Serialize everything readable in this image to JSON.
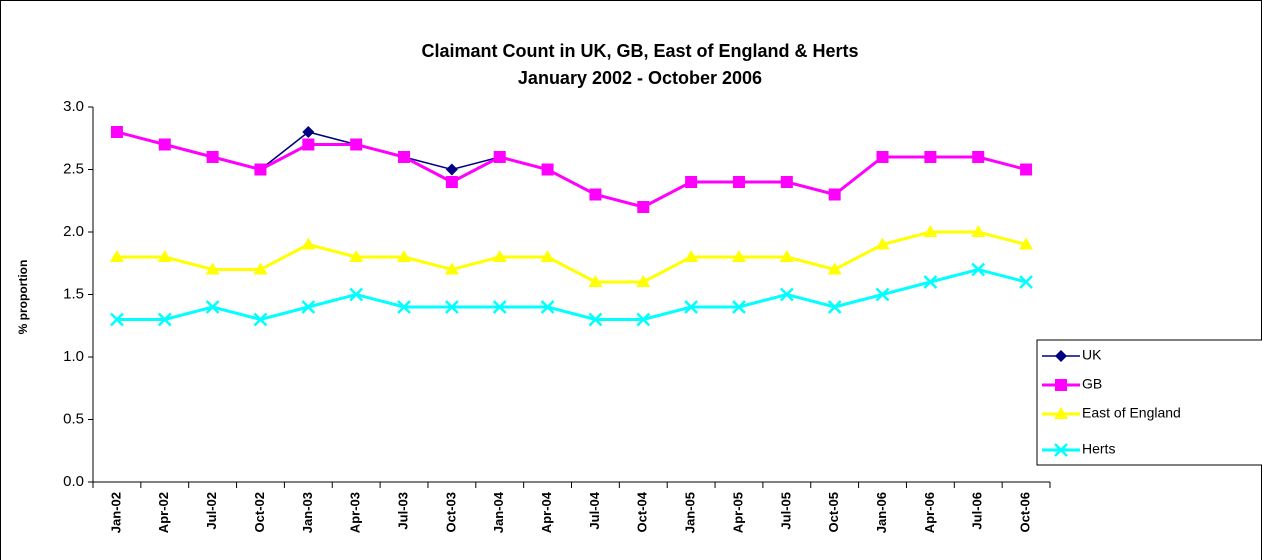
{
  "chart_data": {
    "type": "line",
    "title": "Claimant Count in UK, GB, East of England & Herts",
    "subtitle": "January 2002 - October 2006",
    "y_label": "% proportion",
    "categories": [
      "Jan-02",
      "Apr-02",
      "Jul-02",
      "Oct-02",
      "Jan-03",
      "Apr-03",
      "Jul-03",
      "Oct-03",
      "Jan-04",
      "Apr-04",
      "Jul-04",
      "Oct-04",
      "Jan-05",
      "Apr-05",
      "Jul-05",
      "Oct-05",
      "Jan-06",
      "Apr-06",
      "Jul-06",
      "Oct-06"
    ],
    "series": [
      {
        "name": "UK",
        "color": "#000080",
        "marker": "diamond",
        "values": [
          2.8,
          2.7,
          2.6,
          2.5,
          2.8,
          2.7,
          2.6,
          2.5,
          2.6,
          2.5,
          2.3,
          2.2,
          2.4,
          2.4,
          2.4,
          2.3,
          2.6,
          2.6,
          2.6,
          2.5
        ]
      },
      {
        "name": "GB",
        "color": "#ff00ff",
        "marker": "square",
        "values": [
          2.8,
          2.7,
          2.6,
          2.5,
          2.7,
          2.7,
          2.6,
          2.4,
          2.6,
          2.5,
          2.3,
          2.2,
          2.4,
          2.4,
          2.4,
          2.3,
          2.6,
          2.6,
          2.6,
          2.5
        ]
      },
      {
        "name": "East of England",
        "color": "#ffff00",
        "marker": "triangle",
        "values": [
          1.8,
          1.8,
          1.7,
          1.7,
          1.9,
          1.8,
          1.8,
          1.7,
          1.8,
          1.8,
          1.6,
          1.6,
          1.8,
          1.8,
          1.8,
          1.7,
          1.9,
          2.0,
          2.0,
          1.9
        ]
      },
      {
        "name": "Herts",
        "color": "#00ffff",
        "marker": "x",
        "values": [
          1.3,
          1.3,
          1.4,
          1.3,
          1.4,
          1.5,
          1.4,
          1.4,
          1.4,
          1.4,
          1.3,
          1.3,
          1.4,
          1.4,
          1.5,
          1.4,
          1.5,
          1.6,
          1.7,
          1.6
        ]
      }
    ],
    "ylim": [
      0,
      3
    ],
    "yticks": [
      {
        "value": 0,
        "label": "0.0"
      },
      0.5,
      {
        "value": 1,
        "label": "1.0"
      },
      1.5,
      {
        "value": 2,
        "label": "2.0"
      },
      2.5,
      {
        "value": 3,
        "label": "3.0"
      }
    ],
    "grid": false,
    "legend": "right"
  }
}
